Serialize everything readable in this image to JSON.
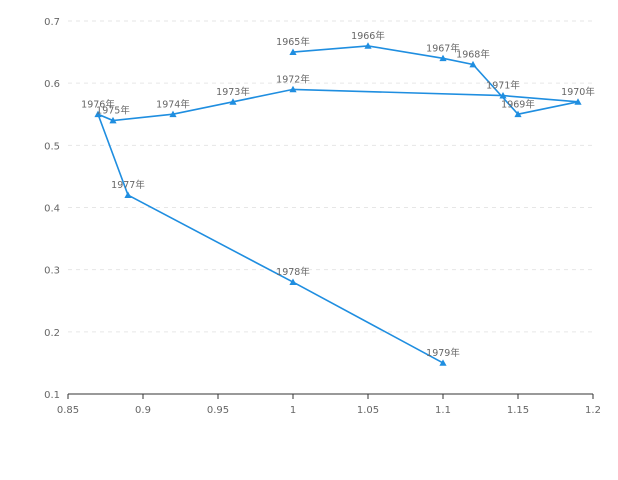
{
  "chart_data": {
    "type": "line",
    "title": "",
    "xlabel": "",
    "ylabel": "",
    "xlim": [
      0.85,
      1.2
    ],
    "ylim": [
      0.1,
      0.7
    ],
    "x_ticks": [
      "0.85",
      "0.9",
      "0.95",
      "1",
      "1.05",
      "1.1",
      "1.15",
      "1.2"
    ],
    "y_ticks": [
      "0.1",
      "0.2",
      "0.3",
      "0.4",
      "0.5",
      "0.6",
      "0.7"
    ],
    "grid": "horizontal dashed",
    "marker": "triangle",
    "color": "#1f8ee0",
    "series": [
      {
        "points": [
          {
            "label": "1965年",
            "x": 1.0,
            "y": 0.65
          },
          {
            "label": "1966年",
            "x": 1.05,
            "y": 0.66
          },
          {
            "label": "1967年",
            "x": 1.1,
            "y": 0.64
          },
          {
            "label": "1968年",
            "x": 1.12,
            "y": 0.63
          },
          {
            "label": "1969年",
            "x": 1.15,
            "y": 0.55
          },
          {
            "label": "1970年",
            "x": 1.19,
            "y": 0.57
          },
          {
            "label": "1971年",
            "x": 1.14,
            "y": 0.58
          },
          {
            "label": "1972年",
            "x": 1.0,
            "y": 0.59
          },
          {
            "label": "1973年",
            "x": 0.96,
            "y": 0.57
          },
          {
            "label": "1974年",
            "x": 0.92,
            "y": 0.55
          },
          {
            "label": "1975年",
            "x": 0.88,
            "y": 0.54
          },
          {
            "label": "1976年",
            "x": 0.87,
            "y": 0.55
          },
          {
            "label": "1977年",
            "x": 0.89,
            "y": 0.42
          },
          {
            "label": "1978年",
            "x": 1.0,
            "y": 0.28
          },
          {
            "label": "1979年",
            "x": 1.1,
            "y": 0.15
          }
        ]
      }
    ]
  }
}
